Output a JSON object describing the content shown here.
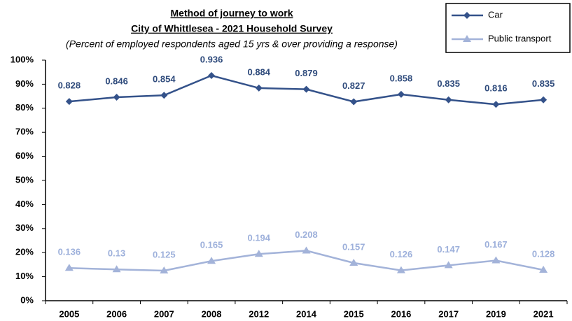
{
  "chart_data": {
    "type": "line",
    "title": "Method of journey to work",
    "subtitle": "City of Whittlesea - 2021 Household Survey",
    "note": "(Percent of employed respondents aged 15 yrs & over providing a response)",
    "categories": [
      "2005",
      "2006",
      "2007",
      "2008",
      "2012",
      "2014",
      "2015",
      "2016",
      "2017",
      "2019",
      "2021"
    ],
    "series": [
      {
        "name": "Car",
        "color": "#34528a",
        "label_color": "#2f4b7c",
        "marker": "diamond",
        "values": [
          0.828,
          0.846,
          0.854,
          0.936,
          0.884,
          0.879,
          0.827,
          0.858,
          0.835,
          0.816,
          0.835
        ]
      },
      {
        "name": "Public transport",
        "color": "#a3b3d9",
        "label_color": "#9db0db",
        "marker": "triangle",
        "values": [
          0.136,
          0.13,
          0.125,
          0.165,
          0.194,
          0.208,
          0.157,
          0.126,
          0.147,
          0.167,
          0.128
        ]
      }
    ],
    "ylim": [
      0,
      1
    ],
    "yticks": [
      {
        "value": 0,
        "label": "0%"
      },
      {
        "value": 0.1,
        "label": "10%"
      },
      {
        "value": 0.2,
        "label": "20%"
      },
      {
        "value": 0.3,
        "label": "30%"
      },
      {
        "value": 0.4,
        "label": "40%"
      },
      {
        "value": 0.5,
        "label": "50%"
      },
      {
        "value": 0.6,
        "label": "60%"
      },
      {
        "value": 0.7,
        "label": "70%"
      },
      {
        "value": 0.8,
        "label": "80%"
      },
      {
        "value": 0.9,
        "label": "90%"
      },
      {
        "value": 1,
        "label": "100%"
      }
    ],
    "grid": false,
    "legend": "top-right"
  }
}
